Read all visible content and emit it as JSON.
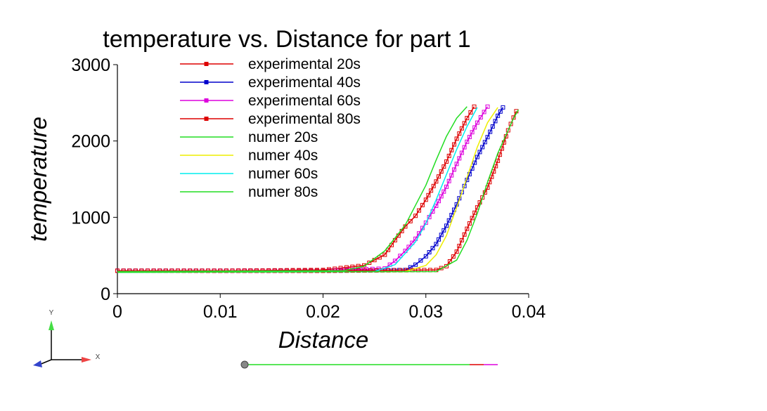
{
  "chart_data": {
    "type": "line",
    "title": "temperature vs. Distance for part 1",
    "xlabel": "Distance",
    "ylabel": "temperature",
    "xlim": [
      0,
      0.04
    ],
    "ylim": [
      0,
      3000
    ],
    "xticks": [
      "0",
      "0.01",
      "0.02",
      "0.03",
      "0.04"
    ],
    "yticks": [
      "0",
      "1000",
      "2000",
      "3000"
    ],
    "grid": false,
    "legend_position": "top-left",
    "series": [
      {
        "name": "experimental 20s",
        "color": "#dd0000",
        "marker": "square",
        "x": [
          0.0,
          0.01,
          0.02,
          0.024,
          0.026,
          0.027,
          0.028,
          0.029,
          0.03,
          0.031,
          0.032,
          0.033,
          0.034,
          0.0347
        ],
        "y": [
          300,
          300,
          310,
          370,
          510,
          700,
          880,
          1020,
          1230,
          1470,
          1730,
          2030,
          2300,
          2450
        ]
      },
      {
        "name": "experimental 40s",
        "color": "#0000cc",
        "marker": "square",
        "x": [
          0.0,
          0.02,
          0.028,
          0.029,
          0.03,
          0.031,
          0.032,
          0.033,
          0.034,
          0.035,
          0.036,
          0.037,
          0.0375
        ],
        "y": [
          300,
          300,
          310,
          380,
          490,
          650,
          890,
          1170,
          1490,
          1790,
          2050,
          2330,
          2440
        ]
      },
      {
        "name": "experimental 60s",
        "color": "#dd00dd",
        "marker": "square",
        "x": [
          0.0,
          0.02,
          0.026,
          0.027,
          0.028,
          0.029,
          0.03,
          0.031,
          0.032,
          0.033,
          0.034,
          0.035,
          0.036
        ],
        "y": [
          300,
          300,
          330,
          430,
          560,
          720,
          930,
          1150,
          1400,
          1700,
          1990,
          2240,
          2450
        ]
      },
      {
        "name": "experimental 80s",
        "color": "#dd0000",
        "marker": "square",
        "x": [
          0.0,
          0.02,
          0.031,
          0.032,
          0.033,
          0.034,
          0.035,
          0.036,
          0.037,
          0.038,
          0.0388
        ],
        "y": [
          300,
          300,
          310,
          360,
          550,
          850,
          1130,
          1390,
          1740,
          2140,
          2390
        ]
      },
      {
        "name": "numer 20s",
        "color": "#22dd22",
        "marker": "none",
        "x": [
          0.0,
          0.022,
          0.024,
          0.026,
          0.028,
          0.03,
          0.031,
          0.032,
          0.033,
          0.034
        ],
        "y": [
          290,
          300,
          360,
          560,
          900,
          1420,
          1750,
          2060,
          2300,
          2450
        ]
      },
      {
        "name": "numer 40s",
        "color": "#eeee00",
        "marker": "none",
        "x": [
          0.0,
          0.028,
          0.03,
          0.031,
          0.032,
          0.033,
          0.034,
          0.035,
          0.036,
          0.037
        ],
        "y": [
          280,
          290,
          370,
          510,
          760,
          1130,
          1520,
          1920,
          2240,
          2440
        ]
      },
      {
        "name": "numer 60s",
        "color": "#00eeee",
        "marker": "none",
        "x": [
          0.0,
          0.025,
          0.027,
          0.029,
          0.03,
          0.031,
          0.032,
          0.033,
          0.034,
          0.035
        ],
        "y": [
          280,
          290,
          380,
          680,
          920,
          1230,
          1560,
          1890,
          2190,
          2440
        ]
      },
      {
        "name": "numer 80s",
        "color": "#22dd22",
        "marker": "none",
        "x": [
          0.0,
          0.031,
          0.033,
          0.034,
          0.035,
          0.036,
          0.037,
          0.038,
          0.0385,
          0.039
        ],
        "y": [
          280,
          290,
          440,
          700,
          1050,
          1460,
          1840,
          2140,
          2290,
          2410
        ]
      }
    ]
  },
  "triad": {
    "y_label": "Y",
    "x_label": "X",
    "y_color": "#44dd44",
    "x_color": "#ee4444",
    "z_color": "#3344cc"
  },
  "slider": {
    "value": 0,
    "colors": [
      "#22dd22",
      "#dd0000",
      "#dd00dd"
    ]
  }
}
